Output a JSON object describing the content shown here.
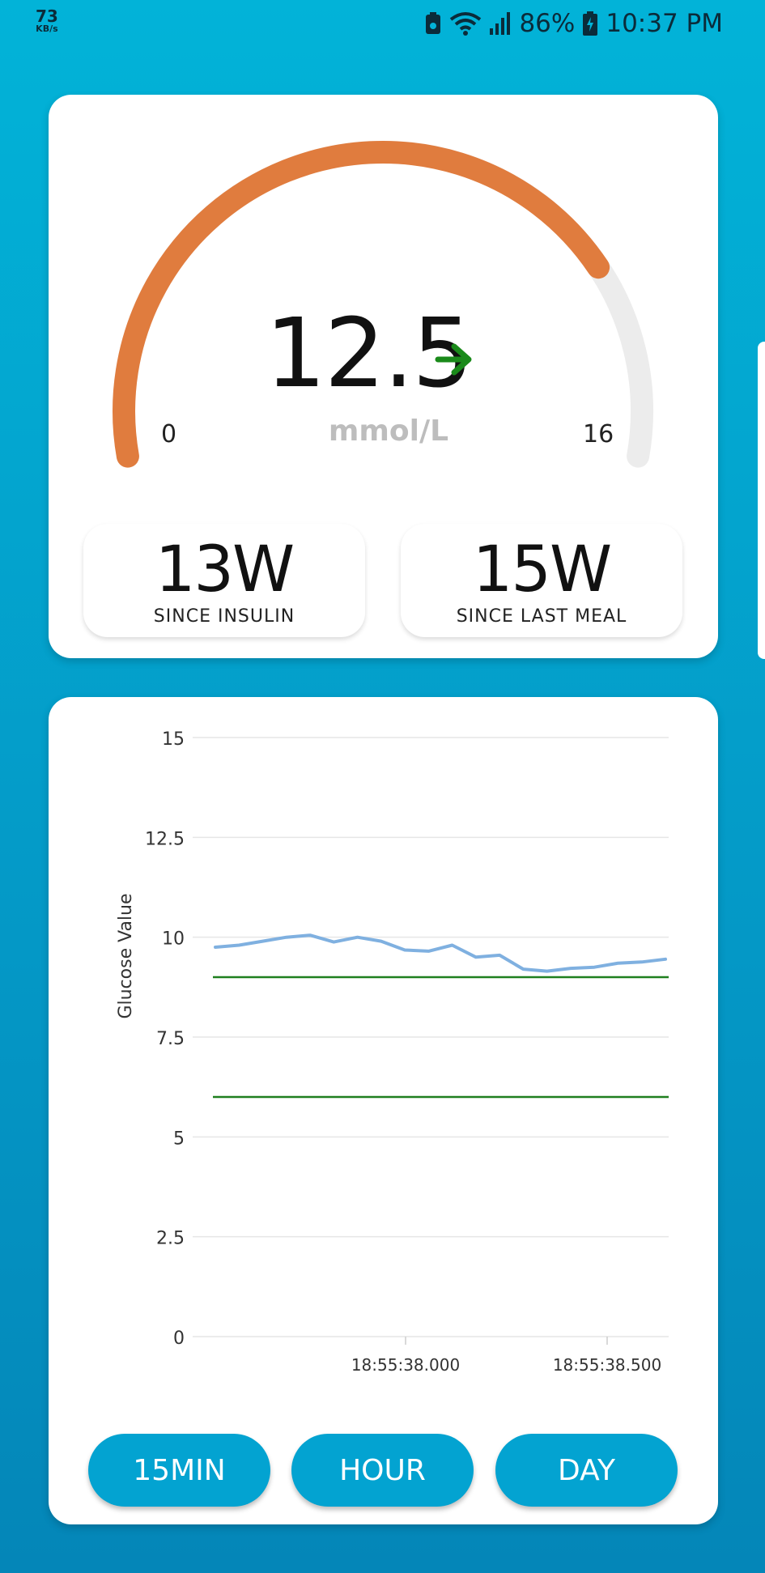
{
  "status_bar": {
    "data_speed": "73",
    "data_speed_unit": "KB/s",
    "battery_percent": "86%",
    "time": "10:37 PM"
  },
  "gauge": {
    "value": "12.5",
    "value_numeric": 12.5,
    "unit": "mmol/L",
    "min_label": "0",
    "max_label": "16",
    "min": 0,
    "max": 16,
    "trend_icon": "arrow-right-icon",
    "colors": {
      "fill": "#e07c3e",
      "track": "#ececec",
      "trend": "#1a8a1a"
    }
  },
  "since_insulin": {
    "value": "13W",
    "label": "SINCE INSULIN"
  },
  "since_meal": {
    "value": "15W",
    "label": "SINCE LAST MEAL"
  },
  "chart_data": {
    "type": "line",
    "ylabel": "Glucose Value",
    "ylim": [
      0,
      15
    ],
    "y_ticks": [
      "0",
      "2.5",
      "5",
      "7.5",
      "10",
      "12.5",
      "15"
    ],
    "x_ticks": [
      "18:55:38.000",
      "18:55:38.500"
    ],
    "grid": true,
    "series": [
      {
        "values": [
          9.75,
          9.8,
          9.9,
          10.0,
          10.05,
          9.88,
          10.0,
          9.9,
          9.68,
          9.65,
          9.8,
          9.5,
          9.55,
          9.2,
          9.15,
          9.22,
          9.25,
          9.35,
          9.38,
          9.45
        ],
        "color": "#7fb0e0"
      }
    ],
    "reference_lines": [
      {
        "value": 9.0,
        "color": "#1f7f1f"
      },
      {
        "value": 6.0,
        "color": "#1f7f1f"
      }
    ]
  },
  "range_buttons": [
    {
      "label": "15MIN"
    },
    {
      "label": "HOUR"
    },
    {
      "label": "DAY"
    }
  ]
}
